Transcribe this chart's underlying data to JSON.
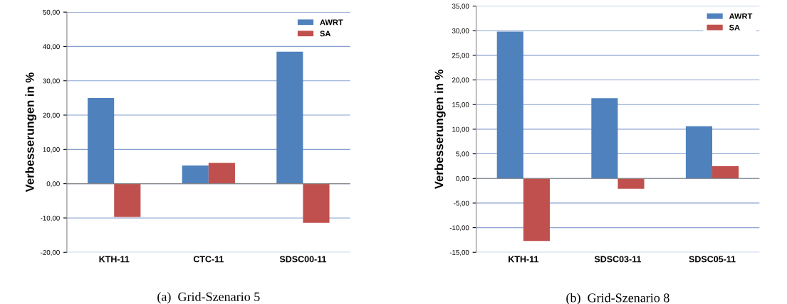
{
  "chart_data": [
    {
      "type": "bar",
      "title": "(a)  Grid-Szenario 5",
      "ylabel": "Verbesserungen in %",
      "categories": [
        "KTH-11",
        "CTC-11",
        "SDSC00-11"
      ],
      "series": [
        {
          "name": "AWRT",
          "color": "#4f81bd",
          "values": [
            25.0,
            5.3,
            38.5
          ]
        },
        {
          "name": "SA",
          "color": "#c0504d",
          "values": [
            -9.7,
            6.1,
            -11.4
          ]
        }
      ],
      "ylim": [
        -20,
        50
      ],
      "yticks": [
        {
          "value": -20,
          "label": "-20,00"
        },
        {
          "value": -10,
          "label": "-10,00"
        },
        {
          "value": 0,
          "label": "0,00"
        },
        {
          "value": 10,
          "label": "10,00"
        },
        {
          "value": 20,
          "label": "20,00"
        },
        {
          "value": 30,
          "label": "30,00"
        },
        {
          "value": 40,
          "label": "40,00"
        },
        {
          "value": 50,
          "label": "50,00"
        }
      ],
      "grid": "y",
      "legend": "top right"
    },
    {
      "type": "bar",
      "title": "(b)  Grid-Szenario 8",
      "ylabel": "Verbesserungen in %",
      "categories": [
        "KTH-11",
        "SDSC03-11",
        "SDSC05-11"
      ],
      "series": [
        {
          "name": "AWRT",
          "color": "#4f81bd",
          "values": [
            29.8,
            16.3,
            10.6
          ]
        },
        {
          "name": "SA",
          "color": "#c0504d",
          "values": [
            -12.7,
            -2.1,
            2.5
          ]
        }
      ],
      "ylim": [
        -15,
        35
      ],
      "yticks": [
        {
          "value": -15,
          "label": "-15,00"
        },
        {
          "value": -10,
          "label": "-10,00"
        },
        {
          "value": -5,
          "label": "-5,00"
        },
        {
          "value": 0,
          "label": "0,00"
        },
        {
          "value": 5,
          "label": "5,00"
        },
        {
          "value": 10,
          "label": "10,00"
        },
        {
          "value": 15,
          "label": "15,00"
        },
        {
          "value": 20,
          "label": "20,00"
        },
        {
          "value": 25,
          "label": "25,00"
        },
        {
          "value": 30,
          "label": "30,00"
        },
        {
          "value": 35,
          "label": "35,00"
        }
      ],
      "grid": "y",
      "legend": "top right"
    }
  ]
}
